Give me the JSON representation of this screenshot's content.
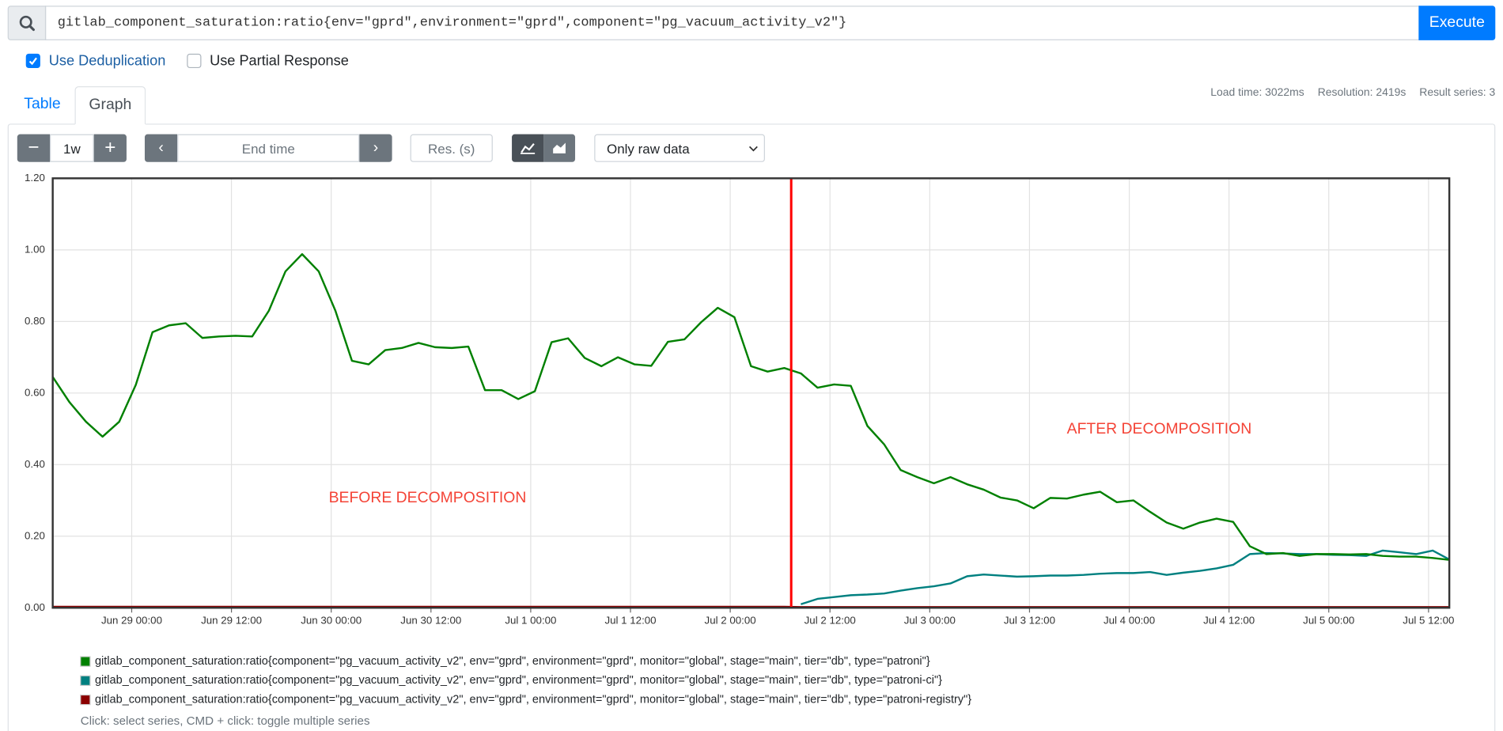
{
  "query": {
    "text": "gitlab_component_saturation:ratio{env=\"gprd\",environment=\"gprd\",component=\"pg_vacuum_activity_v2\"}",
    "button": "Execute"
  },
  "options": [
    {
      "label": "Use Deduplication",
      "checked": true
    },
    {
      "label": "Use Partial Response",
      "checked": false
    }
  ],
  "tabs": [
    {
      "label": "Table",
      "active": false
    },
    {
      "label": "Graph",
      "active": true
    }
  ],
  "stats": [
    "Load time: 3022ms",
    "Resolution: 2419s",
    "Result series: 3"
  ],
  "controls": {
    "range": "1w",
    "end_time": "End time",
    "resolution": "Res. (s)",
    "select": "Only raw data"
  },
  "hint": "Click: select series, CMD + click: toggle multiple series",
  "chart_data": {
    "type": "line",
    "xlim": [
      "Jun 28 14:30",
      "Jul 5 14:30"
    ],
    "xticks": [
      "Jun 29 00:00",
      "Jun 29 12:00",
      "Jun 30 00:00",
      "Jun 30 12:00",
      "Jul 1 00:00",
      "Jul 1 12:00",
      "Jul 2 00:00",
      "Jul 2 12:00",
      "Jul 3 00:00",
      "Jul 3 12:00",
      "Jul 4 00:00",
      "Jul 4 12:00",
      "Jul 5 00:00",
      "Jul 5 12:00"
    ],
    "ylim": [
      0,
      1.2
    ],
    "yticks": [
      {
        "value": 0,
        "label": "0.00"
      },
      {
        "value": 0.2,
        "label": "0.20"
      },
      {
        "value": 0.4,
        "label": "0.40"
      },
      {
        "value": 0.6,
        "label": "0.60"
      },
      {
        "value": 0.8,
        "label": "0.80"
      },
      {
        "value": 1,
        "label": "1.00"
      },
      {
        "value": 1.2,
        "label": "1.20"
      }
    ],
    "grid": true,
    "x": [
      "Jun 28 14:30",
      "Jun 28 16:30",
      "Jun 28 18:30",
      "Jun 28 20:30",
      "Jun 28 22:30",
      "Jun 29 00:30",
      "Jun 29 02:30",
      "Jun 29 04:30",
      "Jun 29 06:30",
      "Jun 29 08:30",
      "Jun 29 10:30",
      "Jun 29 12:30",
      "Jun 29 14:30",
      "Jun 29 16:30",
      "Jun 29 18:30",
      "Jun 29 20:30",
      "Jun 29 22:30",
      "Jun 30 00:30",
      "Jun 30 02:30",
      "Jun 30 04:30",
      "Jun 30 06:30",
      "Jun 30 08:30",
      "Jun 30 10:30",
      "Jun 30 12:30",
      "Jun 30 14:30",
      "Jun 30 16:30",
      "Jun 30 18:30",
      "Jun 30 20:30",
      "Jun 30 22:30",
      "Jul 1 00:30",
      "Jul 1 02:30",
      "Jul 1 04:30",
      "Jul 1 06:30",
      "Jul 1 08:30",
      "Jul 1 10:30",
      "Jul 1 12:30",
      "Jul 1 14:30",
      "Jul 1 16:30",
      "Jul 1 18:30",
      "Jul 1 20:30",
      "Jul 1 22:30",
      "Jul 2 00:30",
      "Jul 2 02:30",
      "Jul 2 04:30",
      "Jul 2 06:30",
      "Jul 2 08:30",
      "Jul 2 10:30",
      "Jul 2 12:30",
      "Jul 2 14:30",
      "Jul 2 16:30",
      "Jul 2 18:30",
      "Jul 2 20:30",
      "Jul 2 22:30",
      "Jul 3 00:30",
      "Jul 3 02:30",
      "Jul 3 04:30",
      "Jul 3 06:30",
      "Jul 3 08:30",
      "Jul 3 10:30",
      "Jul 3 12:30",
      "Jul 3 14:30",
      "Jul 3 16:30",
      "Jul 3 18:30",
      "Jul 3 20:30",
      "Jul 3 22:30",
      "Jul 4 00:30",
      "Jul 4 02:30",
      "Jul 4 04:30",
      "Jul 4 06:30",
      "Jul 4 08:30",
      "Jul 4 10:30",
      "Jul 4 12:30",
      "Jul 4 14:30",
      "Jul 4 16:30",
      "Jul 4 18:30",
      "Jul 4 20:30",
      "Jul 4 22:30",
      "Jul 5 00:30",
      "Jul 5 02:30",
      "Jul 5 04:30",
      "Jul 5 06:30",
      "Jul 5 08:30",
      "Jul 5 10:30",
      "Jul 5 12:30",
      "Jul 5 14:30"
    ],
    "series": [
      {
        "name": "gitlab_component_saturation:ratio{component=\"pg_vacuum_activity_v2\", env=\"gprd\", environment=\"gprd\", monitor=\"global\", stage=\"main\", tier=\"db\", type=\"patroni\"}",
        "color": "#008000",
        "values": [
          0.645,
          0.575,
          0.52,
          0.478,
          0.52,
          0.623,
          0.77,
          0.789,
          0.795,
          0.754,
          0.758,
          0.76,
          0.758,
          0.83,
          0.94,
          0.988,
          0.94,
          0.83,
          0.69,
          0.68,
          0.72,
          0.726,
          0.74,
          0.728,
          0.726,
          0.73,
          0.608,
          0.608,
          0.583,
          0.605,
          0.742,
          0.753,
          0.698,
          0.675,
          0.7,
          0.68,
          0.676,
          0.743,
          0.75,
          0.798,
          0.838,
          0.812,
          0.675,
          0.66,
          0.67,
          0.655,
          0.615,
          0.624,
          0.62,
          0.508,
          0.457,
          0.385,
          0.365,
          0.348,
          0.365,
          0.345,
          0.33,
          0.308,
          0.3,
          0.278,
          0.307,
          0.305,
          0.316,
          0.324,
          0.295,
          0.3,
          0.268,
          0.238,
          0.221,
          0.238,
          0.249,
          0.24,
          0.172,
          0.15,
          0.153,
          0.145,
          0.15,
          0.15,
          0.149,
          0.15,
          0.145,
          0.143,
          0.143,
          0.139,
          0.134
        ]
      },
      {
        "name": "gitlab_component_saturation:ratio{component=\"pg_vacuum_activity_v2\", env=\"gprd\", environment=\"gprd\", monitor=\"global\", stage=\"main\", tier=\"db\", type=\"patroni-ci\"}",
        "color": "#008080",
        "values": [
          null,
          null,
          null,
          null,
          null,
          null,
          null,
          null,
          null,
          null,
          null,
          null,
          null,
          null,
          null,
          null,
          null,
          null,
          null,
          null,
          null,
          null,
          null,
          null,
          null,
          null,
          null,
          null,
          null,
          null,
          null,
          null,
          null,
          null,
          null,
          null,
          null,
          null,
          null,
          null,
          null,
          null,
          null,
          null,
          null,
          0.01,
          0.025,
          0.03,
          0.035,
          0.037,
          0.04,
          0.048,
          0.055,
          0.06,
          0.068,
          0.088,
          0.093,
          0.09,
          0.087,
          0.088,
          0.09,
          0.09,
          0.092,
          0.095,
          0.097,
          0.097,
          0.1,
          0.092,
          0.098,
          0.103,
          0.11,
          0.12,
          0.15,
          0.153,
          0.152,
          0.15,
          0.15,
          0.148,
          0.147,
          0.145,
          0.16,
          0.155,
          0.15,
          0.16,
          0.135
        ]
      },
      {
        "name": "gitlab_component_saturation:ratio{component=\"pg_vacuum_activity_v2\", env=\"gprd\", environment=\"gprd\", monitor=\"global\", stage=\"main\", tier=\"db\", type=\"patroni-registry\"}",
        "color": "#8b0000",
        "values": [
          0.003,
          0.003,
          0.003,
          0.003,
          0.003,
          0.003,
          0.003,
          0.003,
          0.003,
          0.003,
          0.003,
          0.003,
          0.003,
          0.003,
          0.003,
          0.003,
          0.003,
          0.003,
          0.003,
          0.003,
          0.003,
          0.003,
          0.003,
          0.003,
          0.003,
          0.003,
          0.003,
          0.003,
          0.003,
          0.003,
          0.003,
          0.003,
          0.003,
          0.003,
          0.003,
          0.003,
          0.003,
          0.003,
          0.003,
          0.003,
          0.003,
          0.003,
          0.003,
          0.003,
          0.003,
          0.002,
          0.002,
          0.002,
          0.002,
          0.002,
          0.002,
          0.002,
          0.002,
          0.002,
          0.002,
          0.002,
          0.002,
          0.002,
          0.002,
          0.002,
          0.002,
          0.002,
          0.002,
          0.002,
          0.002,
          0.002,
          0.002,
          0.002,
          0.002,
          0.002,
          0.002,
          0.002,
          0.002,
          0.002,
          0.002,
          0.002,
          0.002,
          0.002,
          0.002,
          0.002,
          0.002,
          0.002,
          0.002,
          0.002,
          0.002
        ]
      }
    ],
    "marker": {
      "x": "Jul 2 07:20",
      "color": "#ff0000"
    },
    "annotations": [
      {
        "text": "BEFORE DECOMPOSITION",
        "color": "#f44336"
      },
      {
        "text": "AFTER DECOMPOSITION",
        "color": "#f44336"
      }
    ]
  }
}
